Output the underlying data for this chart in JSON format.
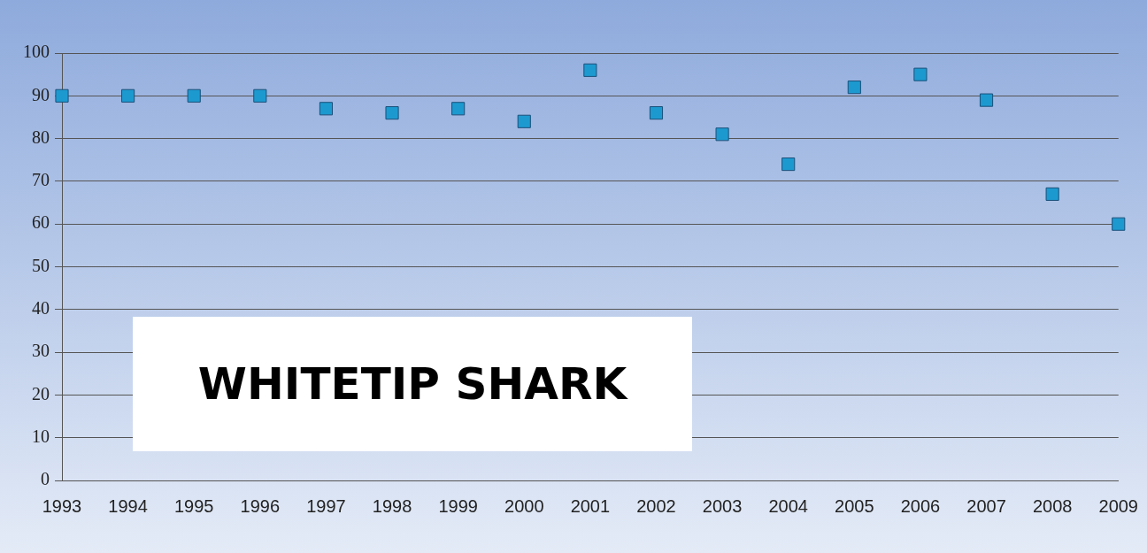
{
  "chart_data": {
    "type": "scatter",
    "title": "WHITETIP SHARK",
    "categories": [
      "1993",
      "1994",
      "1995",
      "1996",
      "1997",
      "1998",
      "1999",
      "2000",
      "2001",
      "2002",
      "2003",
      "2004",
      "2005",
      "2006",
      "2007",
      "2008",
      "2009"
    ],
    "series": [
      {
        "color": "#1c9ad0",
        "values": [
          90,
          90,
          90,
          90,
          87,
          86,
          87,
          84,
          96,
          86,
          81,
          74,
          92,
          95,
          89,
          67,
          60
        ]
      }
    ],
    "ylim": [
      0,
      100
    ],
    "yticks": [
      0,
      10,
      20,
      30,
      40,
      50,
      60,
      70,
      80,
      90,
      100
    ],
    "grid": "y",
    "legend": false,
    "marker": "square"
  }
}
